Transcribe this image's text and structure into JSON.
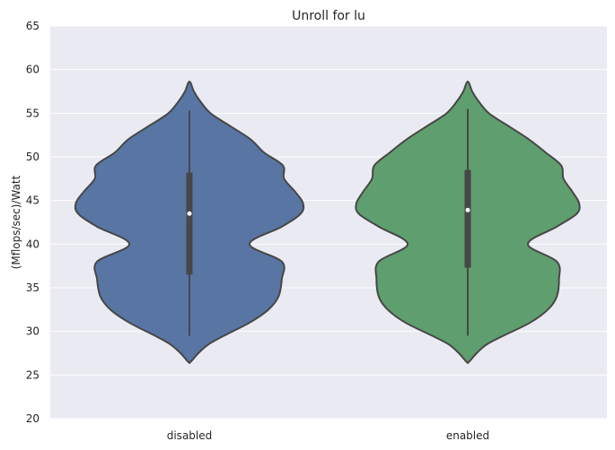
{
  "chart_data": {
    "type": "violin",
    "title": "Unroll for lu",
    "xlabel": "",
    "ylabel": "(Mflops/sec)/Watt",
    "ylim": [
      20,
      65
    ],
    "yticks": [
      20,
      25,
      30,
      35,
      40,
      45,
      50,
      55,
      60,
      65
    ],
    "grid": true,
    "categories": [
      "disabled",
      "enabled"
    ],
    "colors": [
      "#5875a4",
      "#5f9e6e"
    ],
    "background": "#eaeaf2",
    "series": [
      {
        "category": "disabled",
        "min": 29.5,
        "q1": 36.5,
        "median": 43.5,
        "q3": 48.2,
        "max": 55.3,
        "density_y": [
          26.5,
          27.5,
          28.5,
          29.5,
          31,
          32.5,
          34,
          36,
          38,
          40,
          42,
          43.5,
          44.7,
          46,
          47.5,
          49,
          50.5,
          52,
          53.5,
          55,
          56.5,
          57.5,
          58.5
        ],
        "density_width": [
          0.01,
          0.08,
          0.17,
          0.31,
          0.54,
          0.71,
          0.8,
          0.83,
          0.83,
          0.54,
          0.83,
          1.0,
          1.02,
          0.95,
          0.85,
          0.84,
          0.67,
          0.55,
          0.37,
          0.19,
          0.09,
          0.04,
          0.01
        ]
      },
      {
        "category": "enabled",
        "min": 29.5,
        "q1": 37.3,
        "median": 43.9,
        "q3": 48.5,
        "max": 55.5,
        "density_y": [
          26.5,
          27.5,
          28.5,
          29.5,
          31,
          32.5,
          34,
          36,
          38,
          40,
          42,
          43.5,
          44.7,
          46,
          47.5,
          49,
          50.5,
          52,
          53.5,
          55,
          56.5,
          57.5,
          58.5
        ],
        "density_width": [
          0.01,
          0.08,
          0.17,
          0.32,
          0.56,
          0.72,
          0.8,
          0.82,
          0.8,
          0.54,
          0.8,
          0.98,
          1.0,
          0.94,
          0.86,
          0.84,
          0.7,
          0.55,
          0.37,
          0.19,
          0.09,
          0.04,
          0.01
        ]
      }
    ]
  }
}
